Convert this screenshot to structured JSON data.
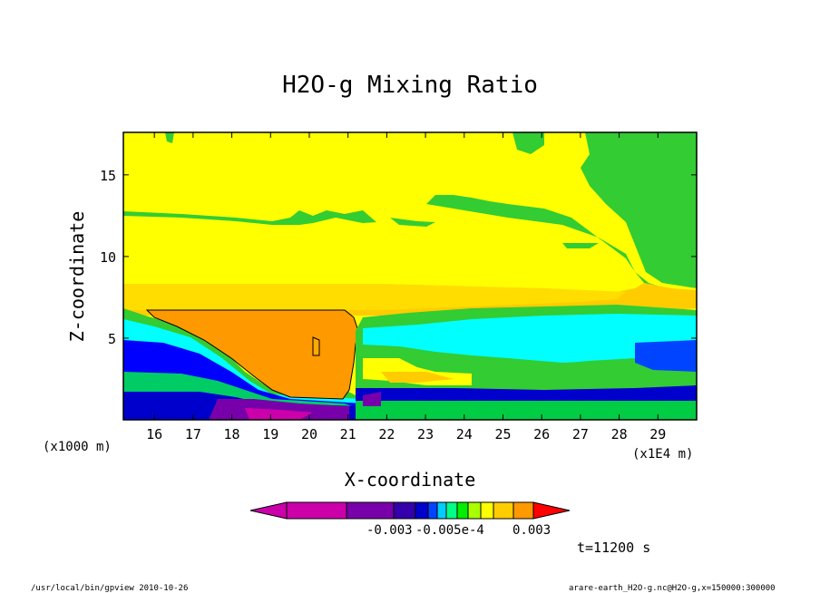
{
  "chart_data": {
    "type": "heatmap",
    "title": "H2O-g Mixing Ratio",
    "xlabel": "X-coordinate",
    "ylabel": "Z-coordinate",
    "x_unit": "(x1E4 m)",
    "y_unit": "(x1000 m)",
    "xlim": [
      15.2,
      30.0
    ],
    "ylim": [
      0.0,
      17.6
    ],
    "xticks": [
      16,
      17,
      18,
      19,
      20,
      21,
      22,
      23,
      24,
      25,
      26,
      27,
      28,
      29
    ],
    "yticks": [
      5,
      10,
      15
    ],
    "colorbar": {
      "colors": [
        "#cc00aa",
        "#7700aa",
        "#3300aa",
        "#0000cc",
        "#0044ff",
        "#00ccff",
        "#00ff88",
        "#00ee00",
        "#aaff00",
        "#ffff00",
        "#ffcc00",
        "#ff9900",
        "#ff0000"
      ],
      "labels": [
        "-0.003",
        "-0.005e-4",
        "0.003"
      ]
    },
    "regions": [
      {
        "name": "upper-green-band",
        "color": "#33cc33",
        "z": [
          12.0,
          12.9
        ]
      },
      {
        "name": "yellow-stratosphere",
        "color": "#ffff00",
        "z": [
          8.5,
          17.6
        ]
      },
      {
        "name": "gold-band",
        "color": "#ffcc00",
        "z": [
          6.8,
          8.5
        ]
      },
      {
        "name": "orange-core",
        "color": "#ff9900",
        "x": [
          16.6,
          21.0
        ],
        "z": [
          1.8,
          7.0
        ]
      },
      {
        "name": "cyan-region",
        "color": "#00ffff",
        "x": [
          22.0,
          30.0
        ],
        "z": [
          3.0,
          6.5
        ]
      },
      {
        "name": "blue-lower",
        "color": "#0000ff",
        "z": [
          0.5,
          5.0
        ]
      },
      {
        "name": "purple-surface",
        "color": "#7700aa",
        "x": [
          17.5,
          21.0
        ],
        "z": [
          0.0,
          2.0
        ]
      }
    ]
  },
  "time_label": "t=11200 s",
  "footer_left": "/usr/local/bin/gpview  2010-10-26",
  "footer_right": "arare-earth_H2O-g.nc@H2O-g,x=150000:300000"
}
